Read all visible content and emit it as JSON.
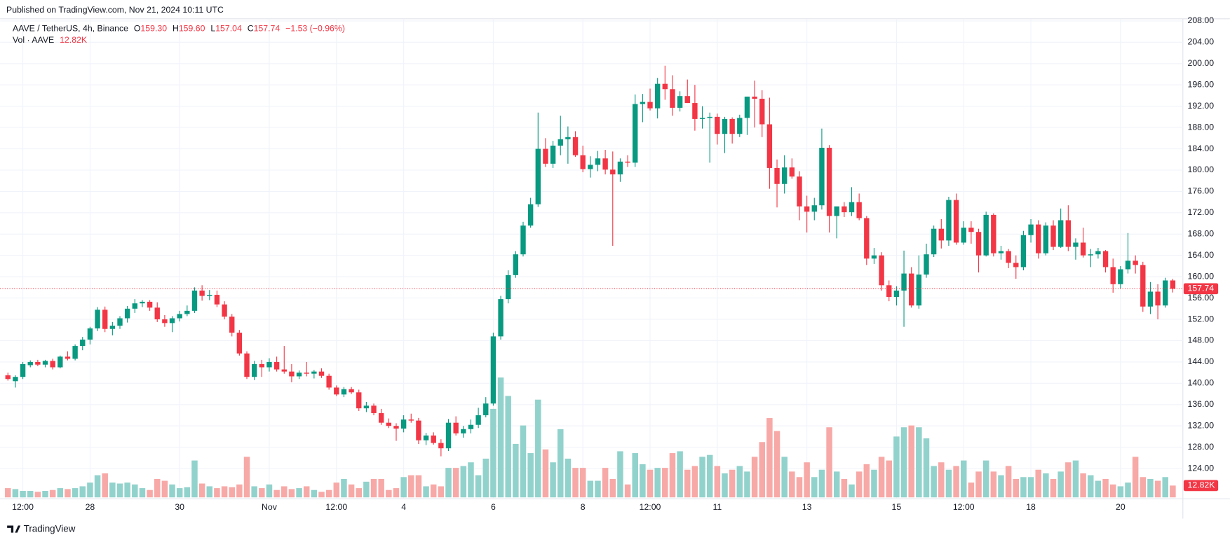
{
  "header": {
    "published": "Published on TradingView.com, Nov 21, 2024 10:11 UTC",
    "brand": "TradingView"
  },
  "legend": {
    "symbol": "AAVE / TetherUS, 4h, Binance",
    "o_key": "O",
    "o": "159.30",
    "h_key": "H",
    "h": "159.60",
    "l_key": "L",
    "l": "157.04",
    "c_key": "C",
    "c": "157.74",
    "change": "−1.53 (−0.96%)",
    "vol_name": "Vol · AAVE",
    "vol": "12.82K"
  },
  "chart_data": {
    "type": "candlestick",
    "up_color": "#089981",
    "down_color": "#f23645",
    "up_volume_color": "#92d2cc",
    "down_volume_color": "#f7a9a7",
    "grid": true,
    "ylim": [
      118.3,
      208.4
    ],
    "yticks": [
      {
        "value": 124,
        "label": "124.00"
      },
      {
        "value": 128,
        "label": "128.00"
      },
      {
        "value": 132,
        "label": "132.00"
      },
      {
        "value": 136,
        "label": "136.00"
      },
      {
        "value": 140,
        "label": "140.00"
      },
      {
        "value": 144,
        "label": "144.00"
      },
      {
        "value": 148,
        "label": "148.00"
      },
      {
        "value": 152,
        "label": "152.00"
      },
      {
        "value": 156,
        "label": "156.00"
      },
      {
        "value": 160,
        "label": "160.00"
      },
      {
        "value": 164,
        "label": "164.00"
      },
      {
        "value": 168,
        "label": "168.00"
      },
      {
        "value": 172,
        "label": "172.00"
      },
      {
        "value": 176,
        "label": "176.00"
      },
      {
        "value": 180,
        "label": "180.00"
      },
      {
        "value": 184,
        "label": "184.00"
      },
      {
        "value": 188,
        "label": "188.00"
      },
      {
        "value": 192,
        "label": "192.00"
      },
      {
        "value": 196,
        "label": "196.00"
      },
      {
        "value": 200,
        "label": "200.00"
      },
      {
        "value": 204,
        "label": "204.00"
      },
      {
        "value": 208,
        "label": "208.00"
      }
    ],
    "xticks": [
      {
        "value": 2,
        "label": "12:00"
      },
      {
        "value": 11,
        "label": "28"
      },
      {
        "value": 23,
        "label": "30"
      },
      {
        "value": 35,
        "label": "Nov"
      },
      {
        "value": 44,
        "label": "12:00"
      },
      {
        "value": 53,
        "label": "4"
      },
      {
        "value": 65,
        "label": "6"
      },
      {
        "value": 77,
        "label": "8"
      },
      {
        "value": 86,
        "label": "12:00"
      },
      {
        "value": 95,
        "label": "11"
      },
      {
        "value": 107,
        "label": "13"
      },
      {
        "value": 119,
        "label": "15"
      },
      {
        "value": 128,
        "label": "12:00"
      },
      {
        "value": 137,
        "label": "18"
      },
      {
        "value": 149,
        "label": "20"
      }
    ],
    "last_price": {
      "value": 157.74,
      "label": "157.74"
    },
    "last_volume": {
      "value": 12820,
      "label": "12.82K"
    },
    "ohlc": [
      [
        141.5,
        142,
        140.5,
        140.8
      ],
      [
        140.4,
        141.5,
        139.2,
        141.2
      ],
      [
        141.2,
        144,
        140.8,
        143.6
      ],
      [
        143.4,
        144.3,
        143,
        144
      ],
      [
        144,
        144.4,
        143.2,
        143.5
      ],
      [
        143.5,
        144.4,
        143,
        144.2
      ],
      [
        144.2,
        144.6,
        142.6,
        143
      ],
      [
        143,
        145.2,
        142.8,
        145
      ],
      [
        145,
        146,
        144.3,
        144.6
      ],
      [
        144.6,
        147.3,
        144.3,
        147
      ],
      [
        147,
        148.7,
        146.2,
        148.2
      ],
      [
        148.2,
        150.6,
        147.3,
        150.3
      ],
      [
        150.3,
        154.3,
        149.8,
        153.8
      ],
      [
        153.8,
        154.4,
        149.6,
        150.2
      ],
      [
        150.2,
        151.5,
        149,
        150.8
      ],
      [
        150.8,
        152.6,
        150.2,
        152.2
      ],
      [
        152.2,
        154.5,
        151.4,
        154
      ],
      [
        154,
        155.8,
        153.2,
        155
      ],
      [
        155,
        155.6,
        154.3,
        155.3
      ],
      [
        155.3,
        155.6,
        153.6,
        154.2
      ],
      [
        154.2,
        155.2,
        151.5,
        152
      ],
      [
        152,
        152.8,
        150.6,
        151.3
      ],
      [
        151.3,
        152.6,
        149.6,
        152.2
      ],
      [
        152.2,
        153.6,
        151.6,
        153
      ],
      [
        153,
        154.6,
        152.6,
        153.6
      ],
      [
        153.6,
        158,
        153.2,
        157.4
      ],
      [
        157.4,
        158.4,
        155.5,
        156.4
      ],
      [
        156.4,
        157.5,
        155.6,
        156.6
      ],
      [
        156.6,
        157.4,
        154.3,
        154.8
      ],
      [
        154.8,
        155.4,
        152,
        152.5
      ],
      [
        152.5,
        153,
        148.8,
        149.5
      ],
      [
        149.5,
        150,
        145.2,
        145.6
      ],
      [
        145.6,
        146,
        140.8,
        141.2
      ],
      [
        141.2,
        144.2,
        140.6,
        143.6
      ],
      [
        143.6,
        144.4,
        141.2,
        143
      ],
      [
        143,
        144.7,
        142.2,
        144
      ],
      [
        144,
        145,
        142.2,
        142.6
      ],
      [
        142.6,
        147,
        141.8,
        142.2
      ],
      [
        142.2,
        143.6,
        140.2,
        141.3
      ],
      [
        141.3,
        142.4,
        140.8,
        142
      ],
      [
        142,
        144,
        141.3,
        141.8
      ],
      [
        141.8,
        142.5,
        140.9,
        142.2
      ],
      [
        142.2,
        142.8,
        141,
        141.4
      ],
      [
        141.4,
        141.8,
        138.8,
        139.2
      ],
      [
        139.2,
        139.6,
        137.6,
        137.9
      ],
      [
        137.9,
        139.3,
        137.4,
        138.9
      ],
      [
        138.9,
        139.3,
        138,
        138.3
      ],
      [
        138.3,
        138.8,
        134.8,
        135.3
      ],
      [
        135.3,
        136.5,
        134.6,
        135.8
      ],
      [
        135.8,
        136.2,
        134,
        134.4
      ],
      [
        134.4,
        135.2,
        132.2,
        132.6
      ],
      [
        132.6,
        133.4,
        131.6,
        132
      ],
      [
        132,
        132.5,
        129.2,
        131.5
      ],
      [
        131.5,
        134,
        130.8,
        133.2
      ],
      [
        133.2,
        134.3,
        132.6,
        133
      ],
      [
        133,
        133.5,
        128.6,
        129.3
      ],
      [
        129.3,
        130.7,
        128.4,
        130.2
      ],
      [
        130.2,
        130.8,
        128.5,
        128.8
      ],
      [
        128.8,
        129.5,
        126.3,
        127.8
      ],
      [
        127.8,
        133.3,
        127.3,
        132.6
      ],
      [
        132.6,
        133.8,
        130.2,
        130.6
      ],
      [
        130.6,
        132,
        129.8,
        131.4
      ],
      [
        131.4,
        133.2,
        130.6,
        132.2
      ],
      [
        132.2,
        135.4,
        131.6,
        134
      ],
      [
        134,
        137.4,
        133.6,
        136.2
      ],
      [
        136.2,
        149.5,
        135.8,
        148.8
      ],
      [
        148.8,
        156.4,
        148.2,
        155.8
      ],
      [
        155.8,
        161.2,
        155,
        160.3
      ],
      [
        160.3,
        164.8,
        159.8,
        164.2
      ],
      [
        164.2,
        170.3,
        163.8,
        169.6
      ],
      [
        169.6,
        174.8,
        169.2,
        173.6
      ],
      [
        173.6,
        190.8,
        173.1,
        184
      ],
      [
        184,
        186,
        180.6,
        181.2
      ],
      [
        181.2,
        185.5,
        180.4,
        184.6
      ],
      [
        184.6,
        190.2,
        182.8,
        185.8
      ],
      [
        185.8,
        188.2,
        181.2,
        186.2
      ],
      [
        186.2,
        187.3,
        182.5,
        182.8
      ],
      [
        182.8,
        184.6,
        179.6,
        180.2
      ],
      [
        180.2,
        182.6,
        178.6,
        181
      ],
      [
        181,
        183.6,
        179.8,
        182.2
      ],
      [
        182.2,
        183.8,
        179.2,
        180.1
      ],
      [
        180.1,
        183.5,
        165.8,
        179.2
      ],
      [
        179.2,
        182.2,
        177.8,
        181.6
      ],
      [
        181.6,
        182.8,
        180.6,
        181.4
      ],
      [
        181.4,
        194.2,
        180.6,
        192.4
      ],
      [
        192.4,
        194.3,
        189,
        192.8
      ],
      [
        192.8,
        195.3,
        191.2,
        191.6
      ],
      [
        191.6,
        197.3,
        189.7,
        196.2
      ],
      [
        196.2,
        199.6,
        193.2,
        195.2
      ],
      [
        195.2,
        197.8,
        190.2,
        191.7
      ],
      [
        191.7,
        194.8,
        191,
        193.9
      ],
      [
        193.9,
        197,
        192.6,
        192.6
      ],
      [
        192.6,
        196,
        187.4,
        189.6
      ],
      [
        189.6,
        192,
        187.8,
        189.8
      ],
      [
        189.8,
        190.8,
        181.4,
        190
      ],
      [
        190,
        190.6,
        184.8,
        186.8
      ],
      [
        186.8,
        190,
        183.2,
        189.6
      ],
      [
        189.6,
        189.9,
        185,
        186.8
      ],
      [
        186.8,
        190.4,
        186.2,
        189.8
      ],
      [
        189.8,
        193.8,
        186.6,
        193.8
      ],
      [
        193.8,
        196.8,
        188,
        193.4
      ],
      [
        193.4,
        195,
        186.2,
        188.6
      ],
      [
        188.6,
        193.6,
        176.5,
        180.4
      ],
      [
        180.4,
        182,
        173,
        177.4
      ],
      [
        177.4,
        182.8,
        175.6,
        180.5
      ],
      [
        180.5,
        182.2,
        178.4,
        178.8
      ],
      [
        178.8,
        179.8,
        170.6,
        173.2
      ],
      [
        173.2,
        175.2,
        168.3,
        172.2
      ],
      [
        172.2,
        174.8,
        170.6,
        173.4
      ],
      [
        173.4,
        187.8,
        172.6,
        184.2
      ],
      [
        184.2,
        184.7,
        168.3,
        171.4
      ],
      [
        171.4,
        173,
        167.2,
        173.2
      ],
      [
        173.2,
        174,
        171.2,
        172.1
      ],
      [
        172.1,
        176.8,
        171.4,
        174
      ],
      [
        174,
        175.6,
        170.6,
        171
      ],
      [
        171,
        171.4,
        162.2,
        163.4
      ],
      [
        163.4,
        165.4,
        162.4,
        164
      ],
      [
        164,
        164.6,
        157.4,
        158.4
      ],
      [
        158.4,
        159.3,
        155.4,
        156.2
      ],
      [
        156.2,
        158.2,
        154.6,
        157.4
      ],
      [
        157.4,
        164.9,
        150.6,
        160.6
      ],
      [
        160.6,
        161.8,
        154.2,
        154.6
      ],
      [
        154.6,
        164,
        154,
        160.4
      ],
      [
        160.4,
        166.2,
        159.8,
        164.2
      ],
      [
        164.2,
        169.6,
        163.7,
        169
      ],
      [
        169,
        170.8,
        165.3,
        166.8
      ],
      [
        166.8,
        175,
        165.8,
        174.4
      ],
      [
        174.4,
        175.6,
        166,
        166.4
      ],
      [
        166.4,
        170.4,
        166,
        169.2
      ],
      [
        169.2,
        170.4,
        166.2,
        168.4
      ],
      [
        168.4,
        169,
        160.8,
        164
      ],
      [
        164,
        172.2,
        163.8,
        171.6
      ],
      [
        171.6,
        171.9,
        163.8,
        164.4
      ],
      [
        164.4,
        165.8,
        163.2,
        164.8
      ],
      [
        164.8,
        165.2,
        161.6,
        162.6
      ],
      [
        162.6,
        164,
        159.6,
        161.8
      ],
      [
        161.8,
        168.6,
        161.2,
        167.8
      ],
      [
        167.8,
        170.8,
        166.4,
        169.8
      ],
      [
        169.8,
        170.6,
        163.4,
        164.4
      ],
      [
        164.4,
        170.2,
        164,
        169.6
      ],
      [
        169.6,
        170.6,
        165,
        165.6
      ],
      [
        165.6,
        172.8,
        165.4,
        170.6
      ],
      [
        170.6,
        173.4,
        164.8,
        165.6
      ],
      [
        165.6,
        167.2,
        163.2,
        166.4
      ],
      [
        166.4,
        169.2,
        163.6,
        164
      ],
      [
        164,
        165.2,
        161.8,
        164.2
      ],
      [
        164.2,
        165.4,
        163.4,
        164.8
      ],
      [
        164.8,
        165,
        160.8,
        161.8
      ],
      [
        161.8,
        163.4,
        157,
        158.6
      ],
      [
        158.6,
        162,
        157.8,
        161.4
      ],
      [
        161.4,
        168.2,
        160.6,
        163
      ],
      [
        163,
        164,
        160.6,
        162.2
      ],
      [
        162.2,
        162.8,
        153.4,
        154.4
      ],
      [
        154.4,
        159,
        153,
        157.2
      ],
      [
        157.2,
        158.6,
        152,
        154.6
      ],
      [
        154.6,
        159.8,
        154.2,
        159.3
      ],
      [
        159.3,
        159.6,
        157.04,
        157.74
      ]
    ],
    "volume": [
      10000,
      9000,
      7000,
      7000,
      6000,
      7000,
      8000,
      10000,
      9000,
      10000,
      12000,
      16000,
      24000,
      26000,
      16000,
      15000,
      16000,
      14000,
      10000,
      8000,
      20000,
      18000,
      14000,
      10000,
      11000,
      40000,
      15000,
      12000,
      10000,
      12000,
      11000,
      14000,
      44000,
      12000,
      10000,
      14000,
      8000,
      12000,
      9000,
      10000,
      12000,
      8000,
      6000,
      8000,
      16000,
      20000,
      14000,
      10000,
      17000,
      20000,
      20000,
      8000,
      10000,
      22000,
      24000,
      24000,
      12000,
      14000,
      12000,
      32000,
      32000,
      34000,
      38000,
      24000,
      42000,
      96000,
      130000,
      110000,
      58000,
      78000,
      48000,
      106000,
      52000,
      38000,
      74000,
      42000,
      32000,
      32000,
      18000,
      18000,
      32000,
      20000,
      50000,
      14000,
      48000,
      36000,
      30000,
      32000,
      32000,
      48000,
      50000,
      30000,
      34000,
      44000,
      46000,
      34000,
      26000,
      30000,
      34000,
      28000,
      44000,
      60000,
      86000,
      72000,
      44000,
      28000,
      22000,
      38000,
      22000,
      30000,
      76000,
      28000,
      20000,
      14000,
      28000,
      36000,
      30000,
      44000,
      40000,
      66000,
      76000,
      78000,
      76000,
      64000,
      34000,
      38000,
      30000,
      34000,
      40000,
      16000,
      28000,
      40000,
      28000,
      24000,
      34000,
      20000,
      22000,
      22000,
      30000,
      26000,
      20000,
      28000,
      38000,
      40000,
      26000,
      24000,
      18000,
      20000,
      14000,
      12000,
      16000,
      44000,
      22000,
      20000,
      18000,
      22000,
      12820
    ]
  }
}
